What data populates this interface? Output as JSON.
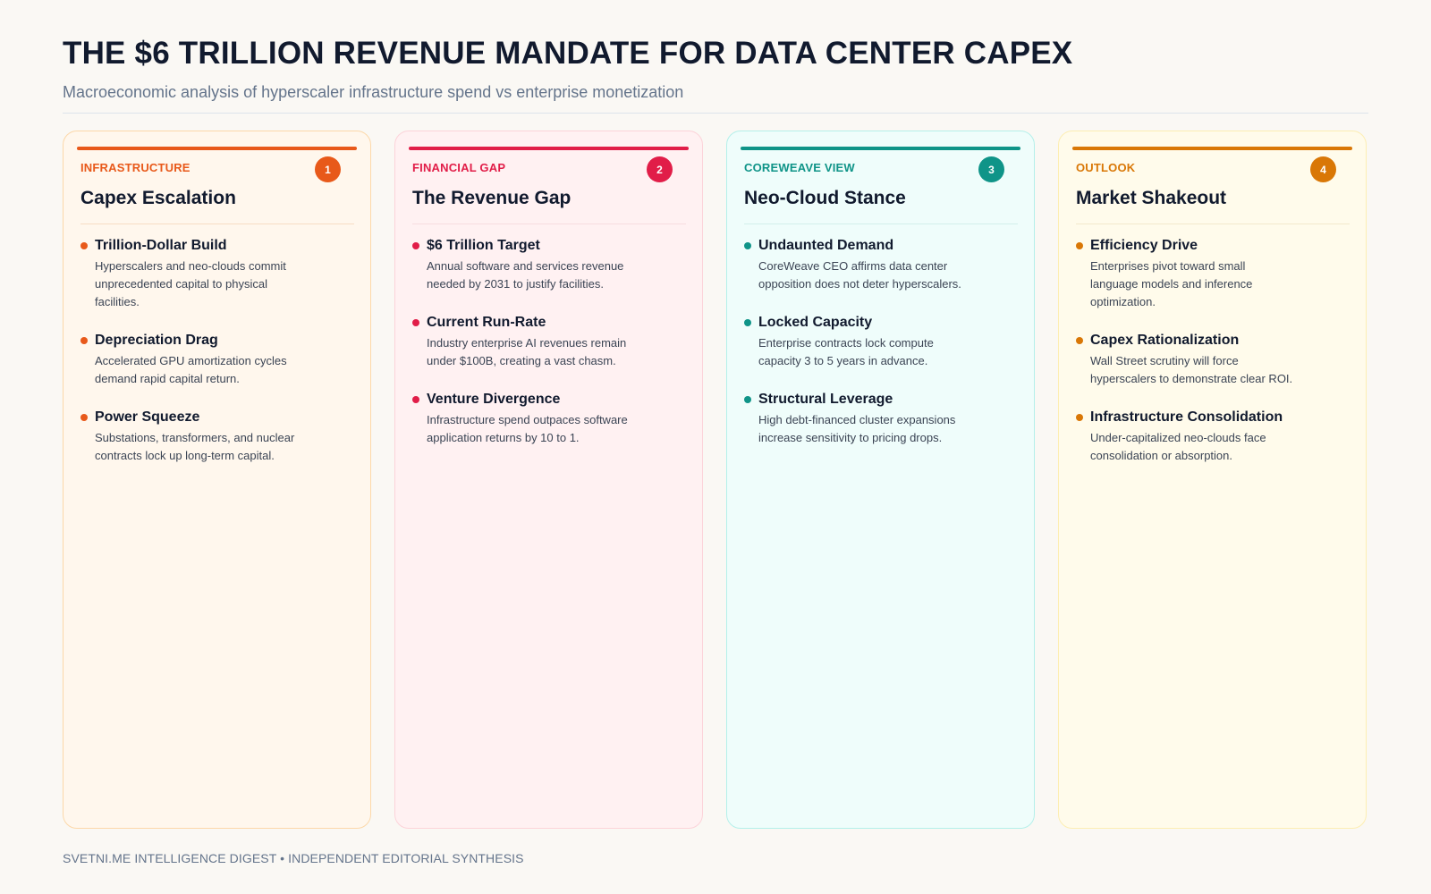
{
  "header": {
    "title": "THE $6 TRILLION REVENUE MANDATE FOR DATA CENTER CAPEX",
    "subtitle": "Macroeconomic analysis of hyperscaler infrastructure spend vs enterprise monetization"
  },
  "cards": [
    {
      "category": "INFRASTRUCTURE",
      "number": "1",
      "title": "Capex Escalation",
      "colors": {
        "accent": "#e8591a",
        "bg": "#fff7ed",
        "border": "#fcd8a9",
        "rule": "#f6dcc4"
      },
      "items": [
        {
          "title": "Trillion-Dollar Build",
          "desc": "Hyperscalers and neo-clouds commit unprecedented capital to physical facilities."
        },
        {
          "title": "Depreciation Drag",
          "desc": "Accelerated GPU amortization cycles demand rapid capital return."
        },
        {
          "title": "Power Squeeze",
          "desc": "Substations, transformers, and nuclear contracts lock up long-term capital."
        }
      ]
    },
    {
      "category": "FINANCIAL GAP",
      "number": "2",
      "title": "The Revenue Gap",
      "colors": {
        "accent": "#e11d48",
        "bg": "#fff1f2",
        "border": "#fcd3d9",
        "rule": "#f7dce0"
      },
      "items": [
        {
          "title": "$6 Trillion Target",
          "desc": "Annual software and services revenue needed by 2031 to justify facilities."
        },
        {
          "title": "Current Run-Rate",
          "desc": "Industry enterprise AI revenues remain under $100B, creating a vast chasm."
        },
        {
          "title": "Venture Divergence",
          "desc": "Infrastructure spend outpaces software application returns by 10 to 1."
        }
      ]
    },
    {
      "category": "COREWEAVE VIEW",
      "number": "3",
      "title": "Neo-Cloud Stance",
      "colors": {
        "accent": "#0f9488",
        "bg": "#effdfb",
        "border": "#b4f0ea",
        "rule": "#d3efeb"
      },
      "items": [
        {
          "title": "Undaunted Demand",
          "desc": "CoreWeave CEO affirms data center opposition does not deter hyperscalers."
        },
        {
          "title": "Locked Capacity",
          "desc": "Enterprise contracts lock compute capacity 3 to 5 years in advance."
        },
        {
          "title": "Structural Leverage",
          "desc": "High debt-financed cluster expansions increase sensitivity to pricing drops."
        }
      ]
    },
    {
      "category": "OUTLOOK",
      "number": "4",
      "title": "Market Shakeout",
      "colors": {
        "accent": "#d97706",
        "bg": "#fffbeb",
        "border": "#fdeeb3",
        "rule": "#f3e9cc"
      },
      "items": [
        {
          "title": "Efficiency Drive",
          "desc": "Enterprises pivot toward small language models and inference optimization."
        },
        {
          "title": "Capex Rationalization",
          "desc": "Wall Street scrutiny will force hyperscalers to demonstrate clear ROI."
        },
        {
          "title": "Infrastructure Consolidation",
          "desc": "Under-capitalized neo-clouds face consolidation or absorption."
        }
      ]
    }
  ],
  "footer": {
    "text": "SVETNI.ME INTELLIGENCE DIGEST • INDEPENDENT EDITORIAL SYNTHESIS"
  }
}
